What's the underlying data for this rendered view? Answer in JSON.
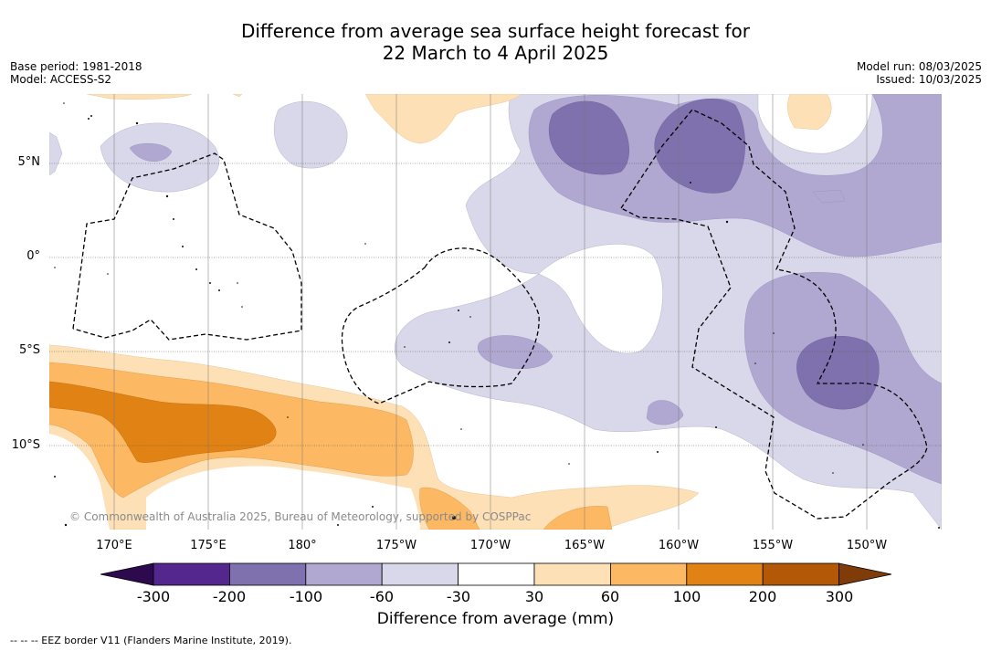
{
  "title": {
    "line1": "Difference from average sea surface height forecast for",
    "line2": "22 March to 4 April 2025"
  },
  "meta_left": [
    "Base period: 1981-2018",
    "Model: ACCESS-S2"
  ],
  "meta_right": [
    "Model run: 08/03/2025",
    "Issued: 10/03/2025"
  ],
  "map": {
    "lat_labels": [
      "5°N",
      "0°",
      "5°S",
      "10°S"
    ],
    "lon_labels": [
      "170°E",
      "175°E",
      "180°",
      "175°W",
      "170°W",
      "165°W",
      "160°W",
      "155°W",
      "150°W"
    ],
    "copyright": "© Commonwealth of Australia 2025, Bureau of Meteorology, supported by COSPPac"
  },
  "colorbar": {
    "ticks": [
      "-300",
      "-200",
      "-100",
      "-60",
      "-30",
      "30",
      "60",
      "100",
      "200",
      "300"
    ],
    "colors": {
      "below_-300": "#2d0a4e",
      "-300_-200": "#54278f",
      "-200_-100": "#7f71ad",
      "-100_-60": "#b0a8d0",
      "-60_-30": "#d8d8ea",
      "-30_30": "#ffffff",
      "30_60": "#fee0b6",
      "60_100": "#fdb863",
      "100_200": "#e08214",
      "200_300": "#b35806",
      "above_300": "#7f3b08"
    },
    "label": "Difference from average (mm)"
  },
  "footnote": "--  --  -- EEZ border V11 (Flanders Marine Institute, 2019)."
}
